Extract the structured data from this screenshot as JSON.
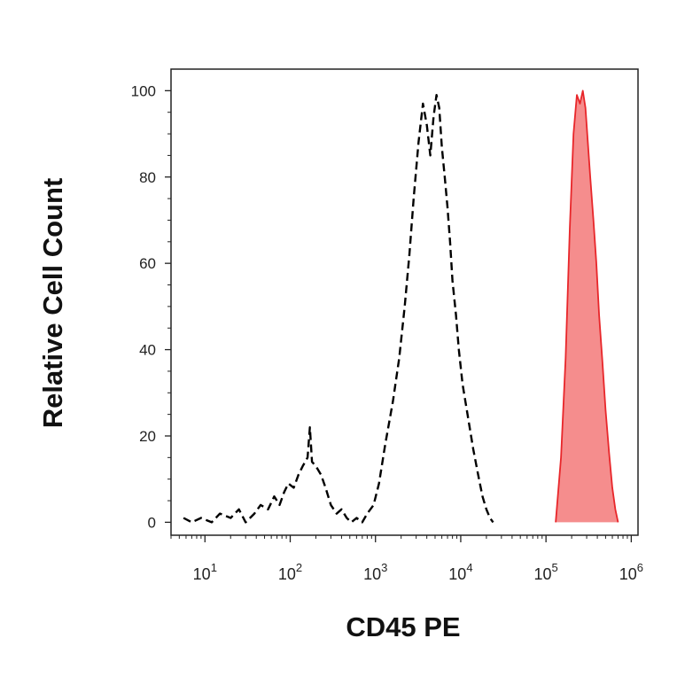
{
  "chart_data": {
    "type": "line",
    "title": "",
    "xlabel": "CD45 PE",
    "ylabel": "Relative Cell Count",
    "x_scale": "log",
    "xlim": [
      4,
      1200000
    ],
    "ylim": [
      -3,
      105
    ],
    "x_ticks": [
      {
        "value": 10,
        "base": "10",
        "exp": "1"
      },
      {
        "value": 100,
        "base": "10",
        "exp": "2"
      },
      {
        "value": 1000,
        "base": "10",
        "exp": "3"
      },
      {
        "value": 10000,
        "base": "10",
        "exp": "4"
      },
      {
        "value": 100000,
        "base": "10",
        "exp": "5"
      },
      {
        "value": 1000000,
        "base": "10",
        "exp": "6"
      }
    ],
    "y_ticks": [
      0,
      20,
      40,
      60,
      80,
      100
    ],
    "grid": false,
    "legend": "none",
    "series": [
      {
        "style": "dashed",
        "color": "#000000",
        "fill": "none",
        "x": [
          5.6,
          7,
          9,
          12,
          15,
          20,
          25,
          30,
          38,
          45,
          55,
          65,
          75,
          85,
          95,
          110,
          125,
          140,
          160,
          170,
          180,
          200,
          230,
          260,
          300,
          350,
          400,
          460,
          520,
          600,
          700,
          800,
          950,
          1100,
          1300,
          1600,
          1900,
          2200,
          2500,
          2800,
          3200,
          3600,
          4000,
          4400,
          4800,
          5200,
          5600,
          6000,
          6500,
          7000,
          7500,
          8000,
          8800,
          9500,
          10500,
          12000,
          14000,
          16000,
          18000,
          20000,
          22000,
          24000
        ],
        "y": [
          1,
          0,
          1,
          0,
          2,
          1,
          3,
          0,
          2,
          4,
          3,
          6,
          4,
          7,
          9,
          8,
          11,
          13,
          15,
          22,
          14,
          13,
          11,
          8,
          4,
          2,
          3,
          1,
          0,
          1,
          0,
          2,
          4,
          9,
          18,
          28,
          38,
          50,
          62,
          75,
          88,
          97,
          92,
          85,
          94,
          99,
          96,
          87,
          80,
          73,
          65,
          56,
          48,
          40,
          32,
          25,
          17,
          11,
          6,
          3,
          1,
          0
        ]
      },
      {
        "style": "solid",
        "color": "#e8262a",
        "fill": "#f58d8d",
        "x": [
          130000,
          150000,
          170000,
          190000,
          210000,
          230000,
          250000,
          270000,
          290000,
          310000,
          330000,
          360000,
          390000,
          420000,
          460000,
          500000,
          550000,
          600000,
          650000,
          700000
        ],
        "y": [
          0,
          15,
          38,
          68,
          90,
          99,
          97,
          100,
          96,
          88,
          80,
          70,
          60,
          48,
          37,
          26,
          16,
          8,
          3,
          0
        ]
      }
    ]
  }
}
